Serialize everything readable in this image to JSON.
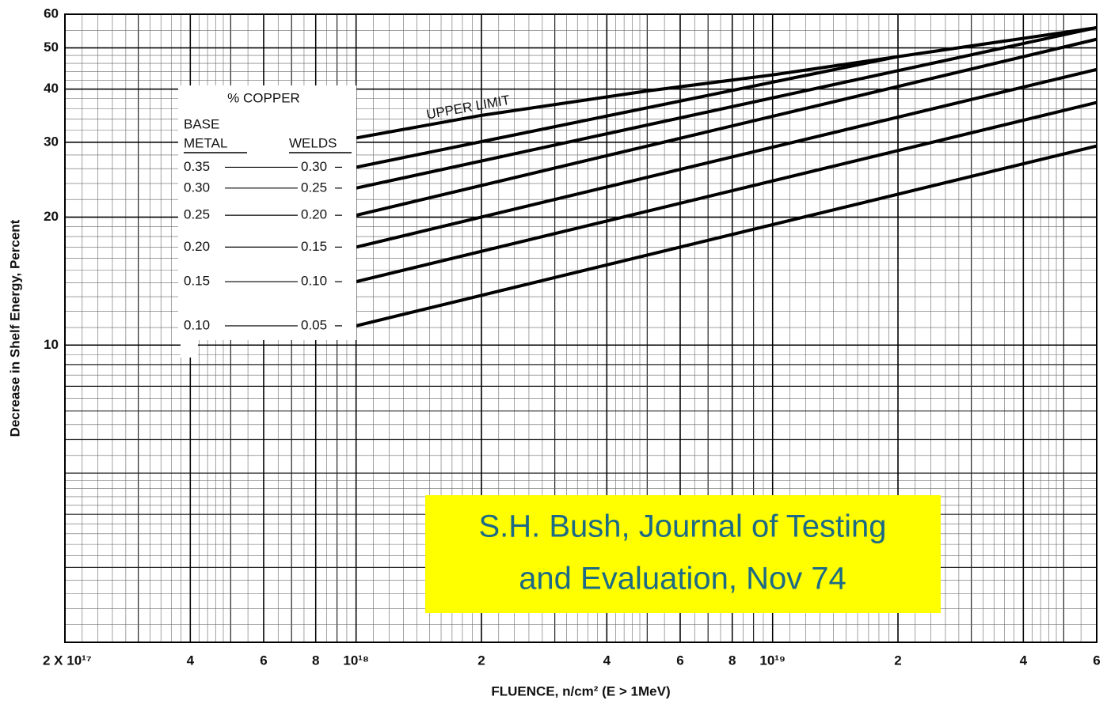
{
  "chart_data": {
    "type": "line",
    "x_label": "FLUENCE, n/cm² (E > 1MeV)",
    "y_label": "Decrease in Shelf Energy, Percent",
    "xscale": "log",
    "yscale": "log",
    "grid": true,
    "color": "#000000",
    "xlim": [
      2e+17,
      6e+19
    ],
    "ylim": [
      2,
      60
    ],
    "xticks": [
      {
        "value": 2e+17,
        "label": "2 X 10¹⁷"
      },
      {
        "value": 4e+17,
        "label": "4"
      },
      {
        "value": 6e+17,
        "label": "6"
      },
      {
        "value": 8e+17,
        "label": "8"
      },
      {
        "value": 1e+18,
        "label": "10¹⁸"
      },
      {
        "value": 2e+18,
        "label": "2"
      },
      {
        "value": 4e+18,
        "label": "4"
      },
      {
        "value": 6e+18,
        "label": "6"
      },
      {
        "value": 8e+18,
        "label": "8"
      },
      {
        "value": 1e+19,
        "label": "10¹⁹"
      },
      {
        "value": 2e+19,
        "label": "2"
      },
      {
        "value": 4e+19,
        "label": "4"
      },
      {
        "value": 6e+19,
        "label": "6"
      }
    ],
    "yticks": [
      10,
      20,
      30,
      40,
      50,
      60
    ],
    "series": [
      {
        "name": "UPPER LIMIT",
        "x": [
          1e+18,
          2e+18,
          5e+18,
          1e+19,
          2e+19,
          6e+19
        ],
        "values": [
          30.7,
          34.7,
          39.6,
          43.2,
          47.7,
          55.8
        ]
      },
      {
        "x": [
          1e+18,
          2e+19
        ],
        "values": [
          26.2,
          47.7
        ]
      },
      {
        "x": [
          1e+18,
          6e+19
        ],
        "values": [
          23.4,
          55.8
        ]
      },
      {
        "x": [
          1e+18,
          6e+19
        ],
        "values": [
          20.2,
          52.4
        ]
      },
      {
        "x": [
          1e+18,
          6e+19
        ],
        "values": [
          17.0,
          44.5
        ]
      },
      {
        "x": [
          1e+18,
          6e+19
        ],
        "values": [
          14.1,
          37.2
        ]
      },
      {
        "x": [
          1e+18,
          6e+19
        ],
        "values": [
          11.1,
          29.4
        ]
      }
    ],
    "legend": {
      "title": "% COPPER",
      "base_header": [
        "BASE",
        "METAL"
      ],
      "welds_header": "WELDS",
      "rows": [
        {
          "base": "0.35",
          "welds": "0.30"
        },
        {
          "base": "0.30",
          "welds": "0.25"
        },
        {
          "base": "0.25",
          "welds": "0.20"
        },
        {
          "base": "0.20",
          "welds": "0.15"
        },
        {
          "base": "0.15",
          "welds": "0.10"
        },
        {
          "base": "0.10",
          "welds": "0.05"
        }
      ]
    },
    "annotation": [
      "S.H. Bush, Journal of Testing",
      "and Evaluation, Nov 74"
    ]
  }
}
